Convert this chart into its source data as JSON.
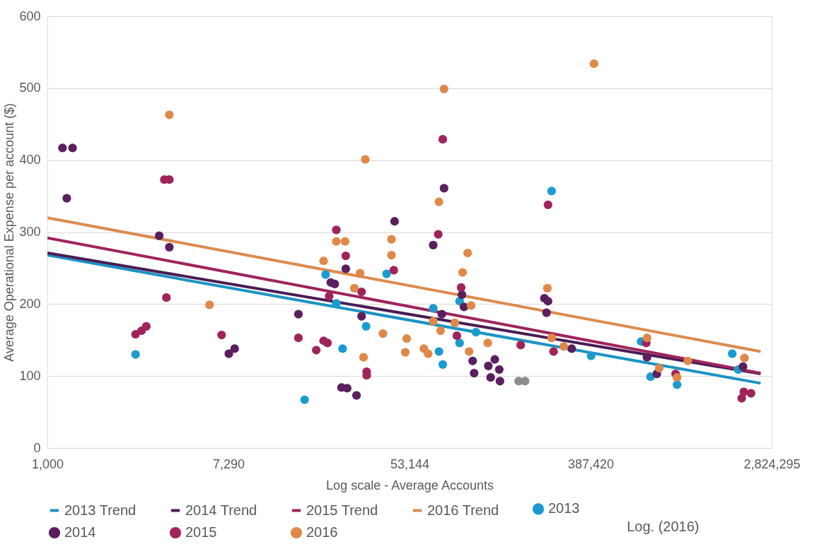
{
  "chart_data": {
    "type": "scatter",
    "xlabel": "Log scale - Average Accounts",
    "ylabel": "Average Operational Expense per account ($)",
    "log": "x",
    "xlim": [
      1000,
      2824295
    ],
    "xticks": [
      {
        "value": 1000,
        "label": "1,000"
      },
      {
        "value": 7290,
        "label": "7,290"
      },
      {
        "value": 53144,
        "label": "53,144"
      },
      {
        "value": 387420,
        "label": "387,420"
      },
      {
        "value": 2824295,
        "label": "2,824,295"
      }
    ],
    "ylim": [
      0,
      600
    ],
    "yticks": [
      0,
      100,
      200,
      300,
      400,
      500,
      600
    ],
    "grid": "y",
    "legend": "bottom",
    "marker": "circle",
    "annotations": [
      "Log. (2016)"
    ],
    "series": [
      {
        "name": "2013 Trend",
        "type": "line",
        "marker": "none",
        "color": "#1b93c4",
        "x": [
          1000,
          2500000
        ],
        "values": [
          268,
          90
        ]
      },
      {
        "name": "2014 Trend",
        "type": "line",
        "marker": "none",
        "color": "#4a1d55",
        "x": [
          1000,
          2500000
        ],
        "values": [
          271,
          103
        ]
      },
      {
        "name": "2015 Trend",
        "type": "line",
        "marker": "none",
        "color": "#a0245c",
        "x": [
          1000,
          2500000
        ],
        "values": [
          292,
          104
        ]
      },
      {
        "name": "2016 Trend",
        "type": "line",
        "marker": "none",
        "color": "#dd8a4f",
        "x": [
          1000,
          2500000
        ],
        "values": [
          320,
          134
        ]
      },
      {
        "name": "2013",
        "color": "#1a9bd0",
        "x": [
          2630,
          16800,
          21160,
          23800,
          25500,
          33000,
          41300,
          68900,
          73400,
          76500,
          92000,
          92000,
          110000,
          252500,
          389300,
          674000,
          748000,
          1000000,
          1832000,
          1954000
        ],
        "values": [
          130,
          67,
          241,
          201,
          138,
          169,
          242,
          194,
          134,
          116,
          204,
          146,
          161,
          357,
          128,
          148,
          99,
          88,
          131,
          109
        ]
      },
      {
        "name": "2014",
        "color": "#5a1f5e",
        "x": [
          1237,
          1180,
          1318,
          3410,
          3810,
          7320,
          7800,
          15700,
          26400,
          22400,
          23400,
          31400,
          45100,
          68900,
          77600,
          75700,
          94400,
          96600,
          106200,
          107900,
          126100,
          135400,
          142200,
          129400,
          143300,
          26800,
          25200,
          29700,
          238800,
          233400,
          242700,
          314800,
          719000,
          801000,
          2061000
        ],
        "values": [
          347,
          417,
          417,
          295,
          279,
          131,
          138,
          186,
          249,
          230,
          228,
          183,
          315,
          282,
          361,
          186,
          213,
          196,
          121,
          104,
          114,
          123,
          109,
          98,
          93,
          83,
          84,
          73,
          188,
          208,
          204,
          138,
          126,
          103,
          113
        ]
      },
      {
        "name": "2015",
        "color": "#a0245c",
        "x": [
          3610,
          3810,
          3690,
          2630,
          2810,
          2960,
          6760,
          15700,
          76500,
          23800,
          26400,
          72800,
          44700,
          31400,
          22000,
          93600,
          89300,
          19100,
          20700,
          21600,
          33200,
          33200,
          242700,
          258000,
          179900,
          713000,
          984000,
          2033000,
          2250000,
          2080000
        ],
        "values": [
          373,
          373,
          209,
          158,
          163,
          169,
          157,
          153,
          429,
          303,
          267,
          297,
          247,
          217,
          211,
          223,
          156,
          136,
          149,
          146,
          101,
          106,
          338,
          134,
          143,
          146,
          103,
          69,
          76,
          78
        ]
      },
      {
        "name": "2016",
        "color": "#e08848",
        "x": [
          3810,
          77600,
          402000,
          5920,
          32700,
          73400,
          23800,
          26200,
          20700,
          43600,
          43600,
          30900,
          29000,
          100500,
          95100,
          104400,
          68900,
          87300,
          74700,
          51500,
          50700,
          62200,
          65200,
          32100,
          125300,
          102100,
          39700,
          241000,
          252500,
          288400,
          719000,
          822000,
          1125000,
          2094000,
          1000000
        ],
        "values": [
          463,
          499,
          534,
          199,
          401,
          342,
          287,
          287,
          260,
          290,
          268,
          243,
          222,
          271,
          244,
          198,
          176,
          174,
          163,
          152,
          133,
          138,
          131,
          126,
          146,
          134,
          159,
          222,
          153,
          141,
          153,
          111,
          121,
          125,
          98
        ]
      },
      {
        "color": "#8c8c8c",
        "x": [
          176000,
          188700
        ],
        "values": [
          93,
          93
        ]
      }
    ]
  }
}
